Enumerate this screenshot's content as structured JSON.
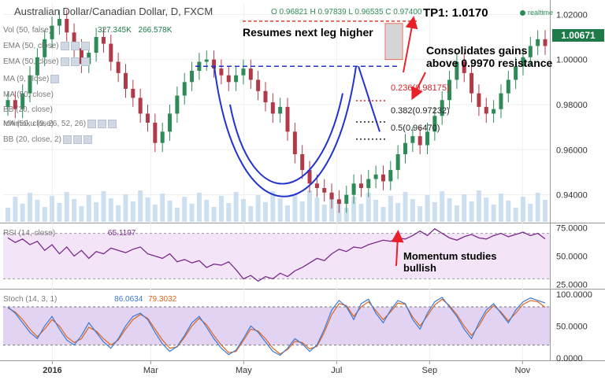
{
  "header": {
    "symbol": "Australian Dollar/Canadian Dollar, D, FXCM",
    "ohlc": "O 0.96821 H 0.97839 L 0.96535 C 0.97400",
    "realtime": "realtime"
  },
  "indicators_panel": [
    {
      "label": "Vol (50, false)",
      "values": [
        "327.345K",
        "266.578K"
      ]
    },
    {
      "label": "EMA (50, close)"
    },
    {
      "label": "EMA (50, close)"
    },
    {
      "label": "MA (9, close)"
    },
    {
      "label": "MA (50, close)"
    },
    {
      "label": "BB (20, close)"
    },
    {
      "label": "MA (50, close)"
    },
    {
      "label": "Ichimoku (9, 26, 52, 26)"
    },
    {
      "label": "BB (20, close, 2)"
    }
  ],
  "rsi_panel": {
    "label": "RSI (14, close)",
    "value": "65.1197"
  },
  "stoch_panel": {
    "label": "Stoch (14, 3, 1)",
    "values": [
      "86.0634",
      "79.3032"
    ]
  },
  "colors": {
    "bull": "#2e8b57",
    "bear": "#b03a48",
    "pattern": "#2233cc",
    "resistance": "#2233cc",
    "annotation": "#e8202a",
    "rsi": "#7b2a8c",
    "stoch_k": "#3a7bd5",
    "stoch_d": "#e0641b",
    "price_tag": "#1f7a4a",
    "osc_bg": "#f3e5f7",
    "vol": "#bcd6ec"
  },
  "annotations": {
    "resumes": "Resumes next leg higher",
    "consolidates_1": "Consolidates gains",
    "consolidates_2": "above 0.9970 resistance",
    "tp": "TP1: 1.0170",
    "momentum_1": "Momentum studies",
    "momentum_2": "bullish"
  },
  "fib_levels": [
    {
      "label": "0.236(0.98175)",
      "value": 0.98175
    },
    {
      "label": "0.382(0.97232)",
      "value": 0.97232
    },
    {
      "label": "0.5(0.96470)",
      "value": 0.9647
    }
  ],
  "current_price": "1.00671",
  "chart_data": [
    {
      "type": "candlestick",
      "title": "Australian Dollar/Canadian Dollar, D, FXCM",
      "x_ticks": [
        "2016",
        "Mar",
        "May",
        "Jul",
        "Sep",
        "Nov"
      ],
      "y_ticks": [
        "0.94000",
        "0.96000",
        "0.98000",
        "1.00000",
        "1.02000"
      ],
      "ylim": [
        0.928,
        1.025
      ],
      "resistance": 0.997,
      "target": 1.017,
      "series": [
        {
          "values": [
            0.982,
            0.978,
            0.985,
            0.993,
            1.001,
            1.009,
            1.015,
            1.018,
            1.012,
            1.005,
            0.998,
            1.003,
            1.01,
            1.007,
            0.999,
            0.994,
            0.987,
            0.983,
            0.976,
            0.972,
            0.963,
            0.968,
            0.976,
            0.984,
            0.99,
            0.995,
            0.999,
            1.0,
            0.996,
            0.993,
            0.99,
            0.993,
            0.996,
            0.991,
            0.986,
            0.981,
            0.976,
            0.979,
            0.968,
            0.958,
            0.951,
            0.945,
            0.943,
            0.941,
            0.938,
            0.936,
            0.94,
            0.945,
            0.943,
            0.947,
            0.949,
            0.946,
            0.951,
            0.958,
            0.963,
            0.966,
            0.962,
            0.968,
            0.975,
            0.982,
            0.991,
            0.999,
            0.994,
            0.985,
            0.979,
            0.976,
            0.978,
            0.985,
            0.991,
            0.997,
            1.001,
            1.006,
            1.009,
            1.006
          ]
        }
      ]
    },
    {
      "type": "line",
      "title": "RSI (14, close)",
      "y_ticks": [
        "25.0000",
        "50.0000",
        "75.0000"
      ],
      "ylim": [
        22,
        78
      ],
      "bands": [
        70,
        30
      ],
      "series": [
        {
          "name": "RSI (14, close)",
          "values": [
            66,
            62,
            65,
            60,
            63,
            55,
            60,
            52,
            58,
            50,
            55,
            48,
            54,
            52,
            57,
            55,
            53,
            56,
            58,
            52,
            50,
            48,
            52,
            45,
            47,
            44,
            46,
            40,
            43,
            42,
            45,
            38,
            30,
            33,
            28,
            32,
            30,
            35,
            32,
            37,
            40,
            44,
            48,
            46,
            52,
            56,
            54,
            58,
            57,
            60,
            62,
            64,
            63,
            66,
            65,
            68,
            72,
            68,
            74,
            70,
            66,
            64,
            67,
            69,
            66,
            65,
            68,
            70,
            67,
            69,
            71,
            68,
            70,
            65.1
          ]
        }
      ]
    },
    {
      "type": "line",
      "title": "Stoch (14, 3, 1)",
      "y_ticks": [
        "0.0000",
        "50.0000",
        "100.0000"
      ],
      "ylim": [
        -4,
        106
      ],
      "bands": [
        80,
        20
      ],
      "series": [
        {
          "name": "%K",
          "values": [
            80,
            70,
            55,
            40,
            30,
            50,
            65,
            45,
            28,
            20,
            35,
            55,
            40,
            25,
            15,
            30,
            50,
            65,
            70,
            60,
            40,
            22,
            10,
            18,
            35,
            55,
            65,
            48,
            30,
            15,
            5,
            12,
            30,
            50,
            40,
            25,
            10,
            4,
            15,
            30,
            22,
            10,
            20,
            45,
            75,
            90,
            80,
            60,
            85,
            92,
            70,
            55,
            75,
            90,
            85,
            60,
            45,
            70,
            88,
            95,
            80,
            65,
            45,
            30,
            55,
            75,
            85,
            70,
            55,
            75,
            88,
            94,
            90,
            86.1
          ]
        },
        {
          "name": "%D",
          "values": [
            78,
            72,
            60,
            45,
            33,
            45,
            60,
            50,
            33,
            24,
            30,
            48,
            42,
            30,
            20,
            28,
            45,
            60,
            68,
            62,
            45,
            28,
            15,
            17,
            32,
            50,
            62,
            52,
            35,
            20,
            8,
            10,
            27,
            45,
            42,
            30,
            15,
            6,
            13,
            26,
            24,
            14,
            18,
            40,
            68,
            85,
            82,
            65,
            80,
            88,
            74,
            60,
            72,
            86,
            84,
            64,
            50,
            66,
            83,
            92,
            82,
            68,
            50,
            35,
            50,
            70,
            82,
            72,
            58,
            70,
            84,
            90,
            88,
            79.3
          ]
        }
      ]
    }
  ]
}
